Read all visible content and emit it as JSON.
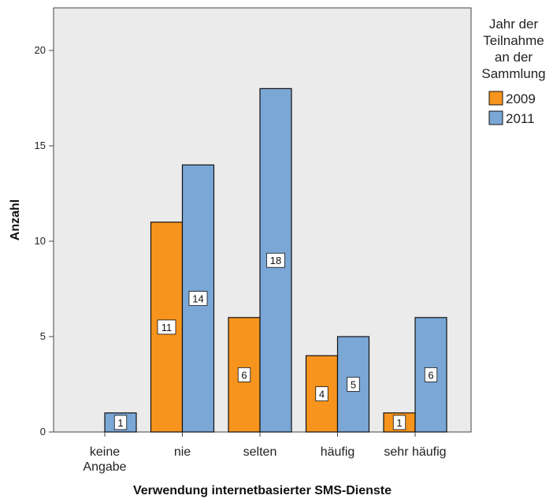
{
  "chart_data": {
    "type": "bar",
    "categories": [
      "keine Angabe",
      "nie",
      "selten",
      "häufig",
      "sehr häufig"
    ],
    "category_lines": [
      [
        "keine",
        "Angabe"
      ],
      [
        "nie"
      ],
      [
        "selten"
      ],
      [
        "häufig"
      ],
      [
        "sehr häufig"
      ]
    ],
    "series": [
      {
        "name": "2009",
        "values": [
          null,
          11,
          6,
          4,
          1
        ],
        "color": "#f7941d"
      },
      {
        "name": "2011",
        "values": [
          1,
          14,
          18,
          5,
          6
        ],
        "color": "#7aa7d6"
      }
    ],
    "xlabel": "Verwendung internetbasierter SMS-Dienste",
    "ylabel": "Anzahl",
    "ylim": [
      0,
      22
    ],
    "yticks": [
      0,
      5,
      10,
      15,
      20
    ],
    "legend": {
      "title_lines": [
        "Jahr der",
        "Teilnahme",
        "an der",
        "Sammlung"
      ],
      "placement": "right"
    },
    "plot_background": "#ebebeb",
    "grid": false
  }
}
